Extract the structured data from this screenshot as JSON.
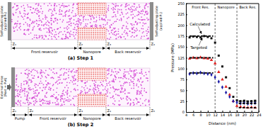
{
  "diagram": {
    "step1": {
      "caption": "(a)  Step 1",
      "left_plate": [
        "Self-adjusting plate",
        "(applied P₀)"
      ],
      "right_plate": [
        "Self-adjusting plate",
        "(applied P₁)"
      ],
      "z_labels": [
        "Z₁",
        "Z₂",
        "Z₃",
        "Z₄"
      ],
      "regions": [
        "Front reservoir",
        "Nanopore",
        "Back reservoir"
      ]
    },
    "step2": {
      "caption": "(b)  Step 2",
      "left_plate": [
        "External Force",
        "(Fext = P₀A)"
      ],
      "z_labels": [
        "Z₁",
        "Z₂",
        "Z₃",
        "Z₄",
        "Z₅"
      ],
      "regions": [
        "Pump",
        "Front reservoir",
        "Nanopore",
        "Back reservoir"
      ]
    }
  },
  "chart_data": {
    "type": "scatter",
    "x_label": "Distance (nm)",
    "y_label": "Pressure (MPa)",
    "xlim": [
      4,
      24
    ],
    "xticks": [
      4,
      6,
      8,
      10,
      12,
      14,
      16,
      18,
      20,
      22,
      24
    ],
    "ylim": [
      0,
      250
    ],
    "yticks": [
      0,
      25,
      50,
      75,
      100,
      125,
      150,
      175,
      200,
      225,
      250
    ],
    "grid": false,
    "regions": [
      {
        "label": "Front Res.",
        "from": 4,
        "to": 12
      },
      {
        "label": "Nanopore",
        "from": 12,
        "to": 18
      },
      {
        "label": "Back Res.",
        "from": 18,
        "to": 24
      }
    ],
    "annotations": [
      {
        "text": "Calculated",
        "x": 5,
        "y": 200,
        "arrow_x": 8.3,
        "arrow_y": 180
      },
      {
        "text": "Targeted",
        "x": 5.2,
        "y": 145,
        "arrow_x": 8.5,
        "arrow_y": 172
      }
    ],
    "series": [
      {
        "type": "scatter",
        "marker": "square",
        "color": "#111111",
        "x": [
          5,
          6,
          7,
          8,
          9,
          10,
          11,
          12,
          13,
          14,
          15,
          16,
          17,
          18,
          19,
          20,
          21,
          22,
          23
        ],
        "values": [
          172,
          174,
          173,
          172,
          175,
          173,
          170,
          160,
          130,
          105,
          80,
          55,
          35,
          27,
          25,
          26,
          24,
          25,
          26
        ]
      },
      {
        "type": "scatter",
        "marker": "triangle",
        "color": "#e02020",
        "x": [
          5,
          6,
          7,
          8,
          9,
          10,
          11,
          12,
          13,
          14,
          15,
          16,
          17,
          18,
          19,
          20,
          21,
          22,
          23
        ],
        "values": [
          123,
          125,
          124,
          126,
          124,
          123,
          120,
          112,
          92,
          75,
          58,
          40,
          25,
          14,
          12,
          11,
          10,
          11,
          10
        ]
      },
      {
        "type": "scatter",
        "marker": "diamond",
        "color": "#1f1fa8",
        "x": [
          5,
          6,
          7,
          8,
          9,
          10,
          11,
          12,
          13,
          14,
          15,
          16,
          17,
          18,
          19,
          20,
          21,
          22,
          23
        ],
        "values": [
          88,
          90,
          89,
          91,
          89,
          88,
          86,
          80,
          70,
          57,
          45,
          35,
          25,
          22,
          20,
          21,
          19,
          20,
          21
        ]
      },
      {
        "type": "line",
        "line_style": "dashed",
        "color": "#000000",
        "x": [
          5,
          11.5,
          15,
          18.5,
          23.5
        ],
        "values": [
          175,
          175,
          null,
          25,
          25
        ]
      },
      {
        "type": "line",
        "line_style": "dashed",
        "color": "#000000",
        "x": [
          5,
          11.5,
          15,
          18.5,
          23.5
        ],
        "values": [
          125,
          125,
          null,
          10,
          10
        ]
      },
      {
        "type": "line",
        "line_style": "dashed",
        "color": "#000000",
        "x": [
          5,
          11.5,
          15,
          18.5,
          23.5
        ],
        "values": [
          90,
          90,
          null,
          20,
          20
        ]
      }
    ]
  }
}
